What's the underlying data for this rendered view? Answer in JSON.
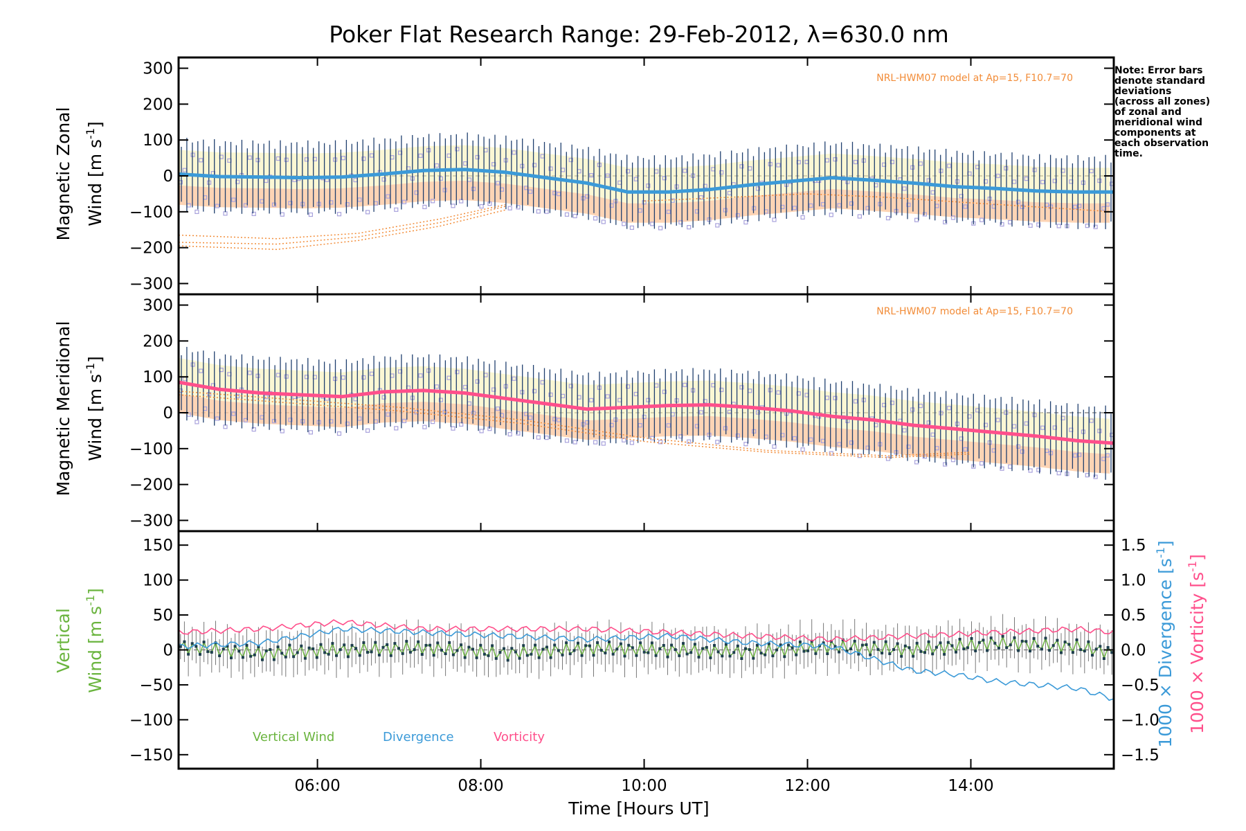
{
  "title": "Poker Flat Research Range: 29-Feb-2012, λ=630.0 nm",
  "note_lines": [
    "Note: Error bars",
    "denote standard",
    "deviations",
    "(across all zones)",
    "of zonal and",
    "meridional wind",
    "components at",
    "each observation",
    "time."
  ],
  "model_label": "NRL-HWM07 model at Ap=15, F10.7=70",
  "colors": {
    "zonal": "#3b9ad8",
    "meridional": "#ff4f8b",
    "vertical": "#6ab43e",
    "divergence": "#3b9ad8",
    "vorticity": "#ff4f8b",
    "model": "#f28c38",
    "errorbar": "#1f3f6e",
    "zone_points": "#a8a2dc",
    "zone_spread": "#ffb89a"
  },
  "chart_data": [
    {
      "type": "line",
      "panel": "zonal",
      "ylabel_line1": "Magnetic Zonal",
      "ylabel_line2": "Wind [m s",
      "ylabel_sup": "-1",
      "ylabel_end": "]",
      "ylim": [
        -330,
        330
      ],
      "yticks": [
        "300",
        "200",
        "100",
        "0",
        "−100",
        "−200",
        "−300"
      ],
      "ytick_values": [
        300,
        200,
        100,
        0,
        -100,
        -200,
        -300
      ],
      "xlim": [
        4.3,
        15.75
      ],
      "mean": {
        "x": [
          4.3,
          4.8,
          5.3,
          5.8,
          6.3,
          6.8,
          7.3,
          7.8,
          8.3,
          8.8,
          9.3,
          9.8,
          10.3,
          10.8,
          11.3,
          11.8,
          12.3,
          12.8,
          13.3,
          13.8,
          14.3,
          14.8,
          15.3,
          15.75
        ],
        "y": [
          5,
          -2,
          -3,
          -5,
          -3,
          5,
          15,
          18,
          10,
          -5,
          -20,
          -45,
          -45,
          -38,
          -25,
          -15,
          -5,
          -12,
          -20,
          -30,
          -35,
          -42,
          -45,
          -45
        ]
      },
      "error_halfwidth": 90,
      "model_lines": [
        {
          "x": [
            4.3,
            5.5,
            6.5,
            7.5,
            8.3
          ],
          "y": [
            -165,
            -175,
            -160,
            -120,
            -80
          ]
        },
        {
          "x": [
            4.3,
            5.5,
            6.5,
            7.5,
            8.3
          ],
          "y": [
            -185,
            -190,
            -170,
            -130,
            -85
          ]
        },
        {
          "x": [
            4.3,
            5.5,
            6.5,
            7.5,
            8.3
          ],
          "y": [
            -195,
            -205,
            -180,
            -140,
            -95
          ]
        },
        {
          "x": [
            10.0,
            11.0,
            12.0,
            13.0,
            14.0,
            15.75
          ],
          "y": [
            -70,
            -60,
            -50,
            -60,
            -75,
            -100
          ]
        }
      ]
    },
    {
      "type": "line",
      "panel": "meridional",
      "ylabel_line1": "Magnetic Meridional",
      "ylabel_line2": "Wind [m s",
      "ylabel_sup": "-1",
      "ylabel_end": "]",
      "ylim": [
        -330,
        330
      ],
      "yticks": [
        "300",
        "200",
        "100",
        "0",
        "−100",
        "−200",
        "−300"
      ],
      "ytick_values": [
        300,
        200,
        100,
        0,
        -100,
        -200,
        -300
      ],
      "xlim": [
        4.3,
        15.75
      ],
      "mean": {
        "x": [
          4.3,
          4.8,
          5.3,
          5.8,
          6.3,
          6.8,
          7.3,
          7.8,
          8.3,
          8.8,
          9.3,
          9.8,
          10.3,
          10.8,
          11.3,
          11.8,
          12.3,
          12.8,
          13.3,
          13.8,
          14.3,
          14.8,
          15.3,
          15.75
        ],
        "y": [
          85,
          65,
          55,
          50,
          45,
          58,
          62,
          55,
          40,
          25,
          10,
          15,
          20,
          22,
          15,
          5,
          -10,
          -20,
          -35,
          -45,
          -55,
          -65,
          -78,
          -85
        ]
      },
      "error_halfwidth": 90,
      "model_lines": [
        {
          "x": [
            4.3,
            5.5,
            7.0,
            8.5,
            10.0,
            11.5,
            13.0,
            14.0
          ],
          "y": [
            60,
            40,
            15,
            -20,
            -70,
            -105,
            -120,
            -110
          ]
        },
        {
          "x": [
            4.3,
            5.5,
            7.0,
            8.5,
            10.0,
            11.5,
            13.0,
            14.0
          ],
          "y": [
            50,
            30,
            5,
            -30,
            -80,
            -110,
            -125,
            -115
          ]
        }
      ]
    },
    {
      "type": "line",
      "panel": "vertical",
      "ylabel_line1": "Vertical",
      "ylabel_line2": "Wind [m s",
      "ylabel_sup": "-1",
      "ylabel_end": "]",
      "ylim": [
        -170,
        170
      ],
      "yticks": [
        "150",
        "100",
        "50",
        "0",
        "−50",
        "−100",
        "−150"
      ],
      "ytick_values": [
        150,
        100,
        50,
        0,
        -50,
        -100,
        -150
      ],
      "y2lim": [
        -1.7,
        1.7
      ],
      "y2ticks": [
        "1.5",
        "1.0",
        "0.5",
        "0.0",
        "−0.5",
        "−1.0",
        "−1.5"
      ],
      "y2tick_values": [
        1.5,
        1.0,
        0.5,
        0.0,
        -0.5,
        -1.0,
        -1.5
      ],
      "y2label_div": "1000 × Divergence [s",
      "y2label_vor": "1000 × Vorticity [s",
      "y2label_sup": "-1",
      "y2label_end": "]",
      "xlim": [
        4.3,
        15.75
      ],
      "xticks": [
        "06:00",
        "08:00",
        "10:00",
        "12:00",
        "14:00"
      ],
      "xtick_values": [
        6,
        8,
        10,
        12,
        14
      ],
      "xlabel": "Time [Hours UT]",
      "series": [
        {
          "name": "Vertical Wind",
          "axis": "left",
          "x": [
            4.3,
            5.3,
            6.3,
            7.3,
            8.3,
            9.3,
            10.3,
            11.3,
            12.3,
            13.3,
            14.3,
            15.3,
            15.75
          ],
          "y": [
            5,
            -5,
            0,
            3,
            -5,
            2,
            0,
            -3,
            5,
            0,
            10,
            5,
            -5
          ]
        },
        {
          "name": "Divergence",
          "axis": "right",
          "x": [
            4.3,
            5.3,
            6.3,
            7.3,
            8.3,
            9.3,
            10.3,
            11.3,
            12.3,
            13.3,
            13.8,
            14.3,
            14.8,
            15.3,
            15.75
          ],
          "y": [
            0.05,
            0.1,
            0.3,
            0.25,
            0.2,
            0.15,
            0.2,
            0.1,
            0.05,
            -0.3,
            -0.35,
            -0.45,
            -0.5,
            -0.55,
            -0.7
          ]
        },
        {
          "name": "Vorticity",
          "axis": "right",
          "x": [
            4.3,
            5.3,
            6.3,
            7.3,
            8.3,
            9.3,
            10.3,
            11.3,
            12.3,
            13.3,
            14.3,
            15.3,
            15.75
          ],
          "y": [
            0.25,
            0.3,
            0.4,
            0.3,
            0.3,
            0.3,
            0.25,
            0.2,
            0.15,
            0.2,
            0.25,
            0.3,
            0.25
          ]
        }
      ],
      "legend_position": "bottom-left"
    }
  ]
}
